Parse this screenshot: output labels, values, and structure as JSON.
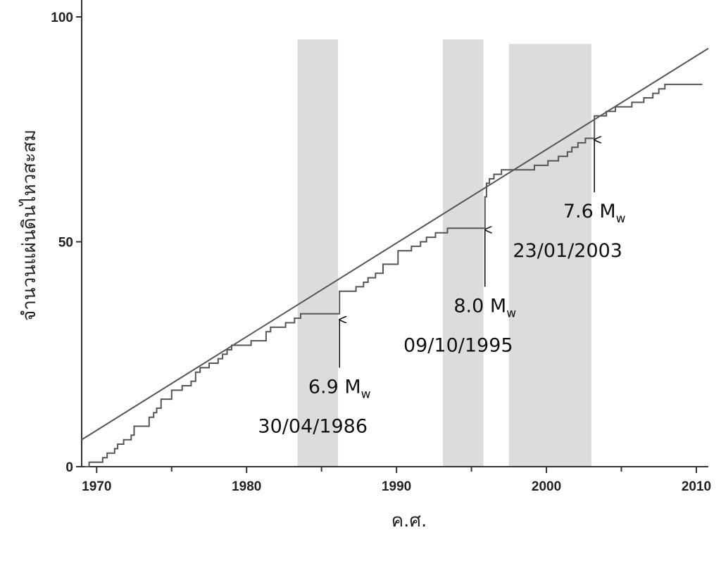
{
  "chart_data": {
    "type": "line",
    "title": "",
    "xlabel": "ค.ศ.",
    "ylabel": "จำนวนแผ่นดินไหวสะสม",
    "xlim": [
      1969,
      2010.8
    ],
    "ylim": [
      0,
      100
    ],
    "x_ticks": [
      1970,
      1980,
      1990,
      2000,
      2010
    ],
    "x_minor_ticks": [
      1975,
      1985,
      1995,
      2005
    ],
    "y_ticks": [
      0,
      50,
      100
    ],
    "grid": false,
    "legend": "none",
    "shaded_periods": [
      {
        "start": 1983.4,
        "end": 1986.1,
        "y_top": 95
      },
      {
        "start": 1993.1,
        "end": 1995.8,
        "y_top": 95
      },
      {
        "start": 1997.5,
        "end": 2003.0,
        "y_top": 94
      }
    ],
    "trend_line": {
      "x": [
        1969,
        2010.8
      ],
      "y": [
        6,
        93
      ]
    },
    "series": [
      {
        "style": "step",
        "x": [
          1969.2,
          1969.5,
          1970.4,
          1970.7,
          1971.2,
          1971.4,
          1971.8,
          1972.3,
          1972.5,
          1973.5,
          1973.8,
          1974.0,
          1974.3,
          1975.0,
          1975.7,
          1976.3,
          1976.6,
          1976.9,
          1977.5,
          1978.1,
          1978.4,
          1978.7,
          1979.0,
          1980.3,
          1981.3,
          1981.6,
          1982.0,
          1982.6,
          1983.2,
          1983.6,
          1984.0,
          1986.2,
          1986.4,
          1987.3,
          1987.8,
          1988.1,
          1988.6,
          1989.1,
          1990.1,
          1991.0,
          1991.6,
          1992.0,
          1992.6,
          1993.4,
          1995.8,
          1995.9,
          1996.0,
          1996.2,
          1996.5,
          1997.0,
          1997.4,
          1998.1,
          1998.4,
          1999.2,
          2000.1,
          2000.8,
          2001.4,
          2001.7,
          2002.1,
          2002.6,
          2003.0,
          2003.2,
          2004.0,
          2004.6,
          2005.7,
          2006.5,
          2007.1,
          2007.5,
          2007.9,
          2008.2,
          2010.4
        ],
        "values": [
          0,
          1,
          2,
          3,
          4,
          5,
          6,
          7,
          9,
          11,
          12,
          13,
          15,
          17,
          18,
          19,
          21,
          22,
          23,
          24,
          25,
          26,
          27,
          28,
          30,
          31,
          31,
          32,
          33,
          34,
          34,
          39,
          39,
          40,
          41,
          42,
          43,
          45,
          48,
          49,
          50,
          51,
          52,
          53,
          53,
          60,
          63,
          64,
          65,
          66,
          66,
          66,
          66,
          67,
          68,
          69,
          70,
          71,
          72,
          73,
          73,
          78,
          79,
          80,
          81,
          82,
          83,
          84,
          85,
          85,
          85
        ]
      }
    ],
    "annotations": [
      {
        "magnitude": "6.9 M",
        "subscript": "w",
        "date": "30/04/1986",
        "arrow_x": 1986.2,
        "arrow_tip_y": 33,
        "arrow_tail_y": 22
      },
      {
        "magnitude": "8.0 M",
        "subscript": "w",
        "date": "09/10/1995",
        "arrow_x": 1995.9,
        "arrow_tip_y": 53,
        "arrow_tail_y": 40
      },
      {
        "magnitude": "7.6 M",
        "subscript": "w",
        "date": "23/01/2003",
        "arrow_x": 2003.2,
        "arrow_tip_y": 73,
        "arrow_tail_y": 61
      }
    ]
  }
}
